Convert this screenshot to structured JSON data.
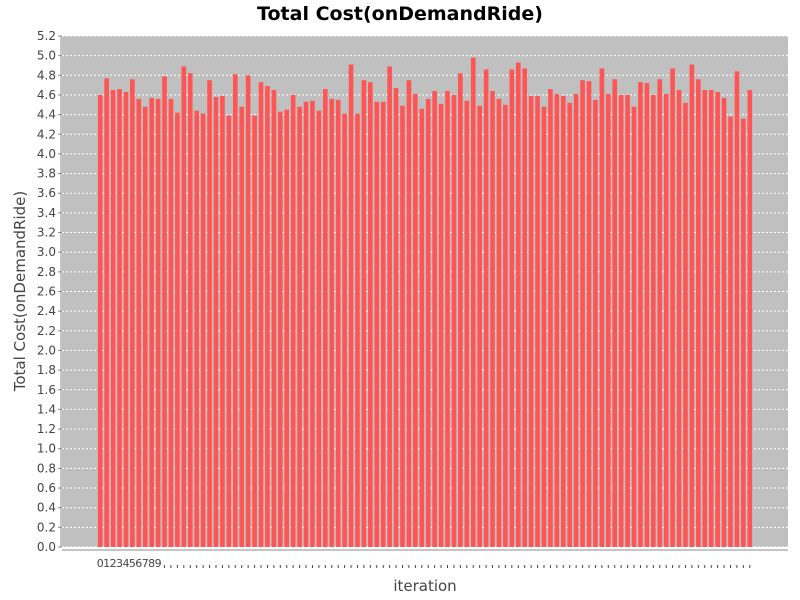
{
  "chart_data": {
    "type": "bar",
    "title": "Total Cost(onDemandRide)",
    "xlabel": "iteration",
    "ylabel": "Total Cost(onDemandRide)",
    "ylim": [
      0,
      5.2
    ],
    "yticks": [
      "0.0",
      "0.2",
      "0.4",
      "0.6",
      "0.8",
      "1.0",
      "1.2",
      "1.4",
      "1.6",
      "1.8",
      "2.0",
      "2.2",
      "2.4",
      "2.6",
      "2.8",
      "3.0",
      "3.2",
      "3.4",
      "3.6",
      "3.8",
      "4.0",
      "4.2",
      "4.4",
      "4.6",
      "4.8",
      "5.0",
      "5.2"
    ],
    "x_tick_labels": [
      "0",
      "1",
      "2",
      "3",
      "4",
      "5",
      "6",
      "7",
      "8",
      "9"
    ],
    "grid": true,
    "colors": {
      "bar": "#ff5555",
      "plot_background": "#c0c0c0",
      "grid": "#ffffff"
    },
    "values": [
      4.6,
      4.77,
      4.65,
      4.66,
      4.63,
      4.76,
      4.56,
      4.48,
      4.57,
      4.56,
      4.79,
      4.56,
      4.42,
      4.89,
      4.82,
      4.44,
      4.41,
      4.75,
      4.58,
      4.59,
      4.39,
      4.81,
      4.48,
      4.8,
      4.39,
      4.73,
      4.69,
      4.65,
      4.43,
      4.45,
      4.6,
      4.48,
      4.53,
      4.54,
      4.44,
      4.66,
      4.56,
      4.55,
      4.41,
      4.91,
      4.41,
      4.75,
      4.73,
      4.53,
      4.53,
      4.89,
      4.67,
      4.49,
      4.75,
      4.61,
      4.46,
      4.56,
      4.64,
      4.51,
      4.64,
      4.6,
      4.82,
      4.54,
      4.98,
      4.49,
      4.86,
      4.64,
      4.56,
      4.5,
      4.86,
      4.93,
      4.87,
      4.59,
      4.59,
      4.48,
      4.66,
      4.61,
      4.59,
      4.52,
      4.61,
      4.75,
      4.74,
      4.55,
      4.87,
      4.61,
      4.76,
      4.6,
      4.6,
      4.48,
      4.73,
      4.72,
      4.6,
      4.76,
      4.61,
      4.87,
      4.65,
      4.52,
      4.91,
      4.76,
      4.65,
      4.65,
      4.63,
      4.57,
      4.38,
      4.84,
      4.36,
      4.65
    ]
  }
}
